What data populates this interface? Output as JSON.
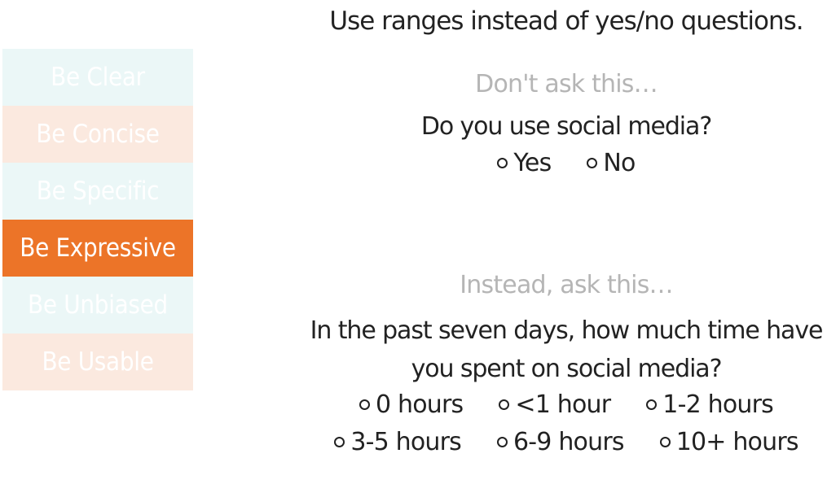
{
  "sidebar": {
    "items": [
      {
        "label": "Be Clear"
      },
      {
        "label": "Be Concise"
      },
      {
        "label": "Be Specific"
      },
      {
        "label": "Be Expressive"
      },
      {
        "label": "Be Unbiased"
      },
      {
        "label": "Be Usable"
      }
    ],
    "active_item": "Be Expressive",
    "colors": {
      "active": "#ec7428",
      "blue": "#ebf7f7",
      "peach": "#fbe9df"
    }
  },
  "main": {
    "headline": "Use ranges instead of yes/no questions.",
    "bad_example": {
      "label": "Don't ask this…",
      "question": "Do you use social media?",
      "options": [
        "Yes",
        "No"
      ]
    },
    "good_example": {
      "label": "Instead, ask this…",
      "question_line1": "In the past seven days, how much time have",
      "question_line2": "you spent on social media?",
      "options_row1": [
        "0 hours",
        "<1 hour",
        "1-2 hours"
      ],
      "options_row2": [
        "3-5 hours",
        "6-9 hours",
        "10+ hours"
      ]
    }
  }
}
